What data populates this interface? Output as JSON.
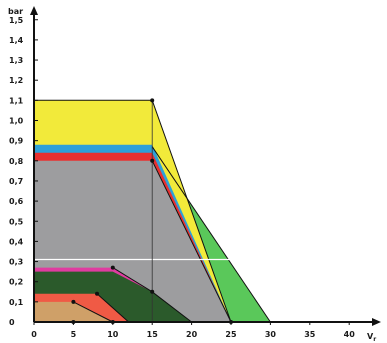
{
  "chart_data": {
    "type": "area",
    "title": "",
    "xlabel": "V",
    "xlabel_sub": "r",
    "ylabel": "bar",
    "xlim": [
      0,
      42
    ],
    "ylim": [
      0,
      1.68
    ],
    "x_ticks": [
      0,
      5,
      10,
      15,
      20,
      25,
      30,
      35,
      40
    ],
    "x_tick_labels": [
      "0",
      "5",
      "10",
      "15",
      "20",
      "25",
      "30",
      "35",
      "40"
    ],
    "y_ticks": [
      0,
      0.1,
      0.2,
      0.3,
      0.4,
      0.5,
      0.6,
      0.7,
      0.8,
      0.9,
      1.0,
      1.1,
      1.2,
      1.3,
      1.4,
      1.5
    ],
    "y_tick_labels": [
      "0",
      "0,1",
      "0,2",
      "0,3",
      "0,4",
      "0,5",
      "0,6",
      "0,7",
      "0,8",
      "0,9",
      "1,0",
      "1,1",
      "1,2",
      "1,3",
      "1,4",
      "1,5"
    ],
    "reference_line": {
      "y": 0.31,
      "x": [
        0,
        28.5
      ],
      "color": "#ffffff"
    },
    "guide_line": {
      "x": 15,
      "y": [
        0,
        1.1
      ],
      "color": "#333333"
    },
    "regions": [
      {
        "color": "#5ac85a",
        "points": [
          [
            15,
            0.87
          ],
          [
            30,
            0
          ],
          [
            25,
            0
          ]
        ]
      },
      {
        "color": "#f2ea3a",
        "points": [
          [
            0,
            1.1
          ],
          [
            15,
            1.1
          ],
          [
            25,
            0
          ],
          [
            15,
            0
          ],
          [
            0,
            0
          ]
        ]
      },
      {
        "color": "#2ea0d8",
        "points": [
          [
            0,
            0.88
          ],
          [
            15,
            0.88
          ],
          [
            25,
            0
          ],
          [
            15,
            0
          ],
          [
            0,
            0
          ]
        ]
      },
      {
        "color": "#e83030",
        "points": [
          [
            0,
            0.84
          ],
          [
            15,
            0.84
          ],
          [
            25,
            0
          ],
          [
            15,
            0
          ],
          [
            0,
            0
          ]
        ]
      },
      {
        "color": "#9d9d9f",
        "points": [
          [
            0,
            0.8
          ],
          [
            15,
            0.8
          ],
          [
            25,
            0
          ],
          [
            15,
            0
          ],
          [
            0,
            0
          ]
        ]
      },
      {
        "color": "#e03ca0",
        "points": [
          [
            0,
            0.27
          ],
          [
            10,
            0.27
          ],
          [
            15,
            0.15
          ],
          [
            20,
            0
          ],
          [
            0,
            0
          ]
        ]
      },
      {
        "color": "#2b5a2b",
        "points": [
          [
            0,
            0.25
          ],
          [
            10,
            0.25
          ],
          [
            15,
            0.15
          ],
          [
            20,
            0
          ],
          [
            0,
            0
          ]
        ]
      },
      {
        "color": "#f05a45",
        "points": [
          [
            0,
            0.14
          ],
          [
            8,
            0.14
          ],
          [
            12,
            0
          ],
          [
            0,
            0
          ]
        ]
      },
      {
        "color": "#cfa068",
        "points": [
          [
            0,
            0.1
          ],
          [
            5,
            0.1
          ],
          [
            10,
            0
          ],
          [
            0,
            0
          ]
        ]
      }
    ],
    "lines": [
      {
        "name": "",
        "color": "#111111",
        "points": [
          [
            0,
            1.1
          ],
          [
            15,
            1.1
          ],
          [
            25,
            0
          ]
        ]
      },
      {
        "name": "",
        "color": "#111111",
        "points": [
          [
            15,
            0.8
          ],
          [
            25,
            0
          ]
        ]
      },
      {
        "name": "",
        "color": "#111111",
        "points": [
          [
            15,
            0.87
          ],
          [
            30,
            0
          ]
        ]
      },
      {
        "name": "",
        "color": "#111111",
        "points": [
          [
            10,
            0.27
          ],
          [
            15,
            0.15
          ],
          [
            20,
            0
          ]
        ]
      },
      {
        "name": "",
        "color": "#111111",
        "points": [
          [
            8,
            0.14
          ],
          [
            12,
            0
          ]
        ]
      },
      {
        "name": "",
        "color": "#111111",
        "points": [
          [
            5,
            0.1
          ],
          [
            10,
            0
          ]
        ]
      }
    ],
    "markers": [
      {
        "x": 15,
        "y": 1.1
      },
      {
        "x": 15,
        "y": 0.8
      },
      {
        "x": 10,
        "y": 0.27
      },
      {
        "x": 15,
        "y": 0.15
      },
      {
        "x": 8,
        "y": 0.14
      },
      {
        "x": 5,
        "y": 0.1
      },
      {
        "x": 25,
        "y": 0
      },
      {
        "x": 5,
        "y": 0
      },
      {
        "x": 10,
        "y": 0
      }
    ]
  }
}
